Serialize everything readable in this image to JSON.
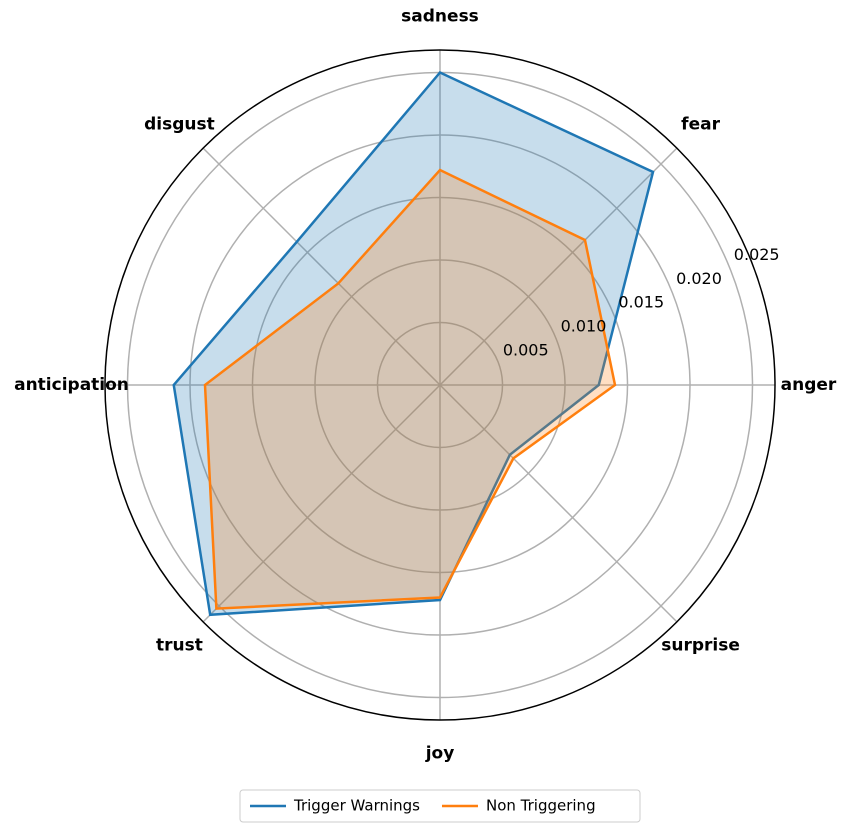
{
  "chart_data": {
    "type": "radar",
    "categories": [
      "anger",
      "fear",
      "sadness",
      "disgust",
      "anticipation",
      "trust",
      "joy",
      "surprise"
    ],
    "series": [
      {
        "name": "Trigger Warnings",
        "color": "#1f77b4",
        "values": [
          0.0127,
          0.0241,
          0.025,
          0.0162,
          0.0213,
          0.026,
          0.0172,
          0.0079
        ]
      },
      {
        "name": "Non Triggering",
        "color": "#ff7f0e",
        "values": [
          0.014,
          0.0164,
          0.0172,
          0.0115,
          0.0188,
          0.0253,
          0.017,
          0.0083
        ]
      }
    ],
    "ylim": [
      0,
      0.0268
    ],
    "yticks": [
      0.005,
      {
        "value": 0.01,
        "label": "0.010"
      },
      0.015,
      {
        "value": 0.02,
        "label": "0.020"
      },
      0.025
    ],
    "grid": true,
    "legend": "bottom"
  }
}
